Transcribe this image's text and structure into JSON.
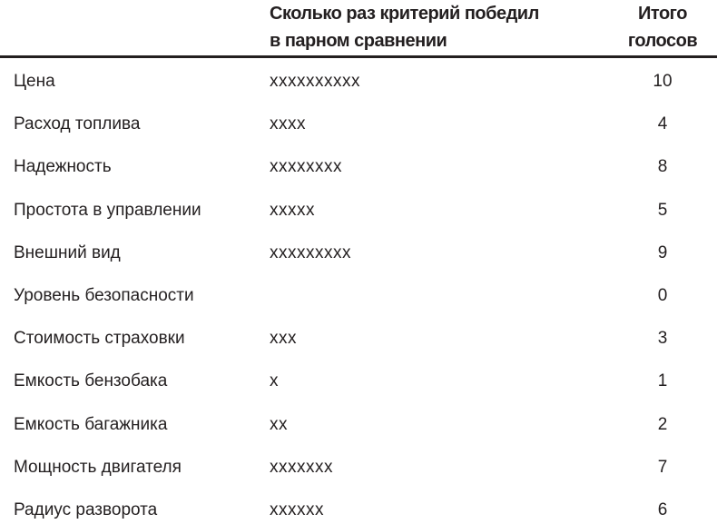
{
  "header": {
    "wins_line1": "Сколько раз критерий победил",
    "wins_line2": "в парном сравнении",
    "total_line1": "Итого",
    "total_line2": "голосов"
  },
  "rows": [
    {
      "criterion": "Цена",
      "marks": "xxxxxxxxxx",
      "total": "10"
    },
    {
      "criterion": "Расход топлива",
      "marks": "xxxx",
      "total": "4"
    },
    {
      "criterion": "Надежность",
      "marks": "xxxxxxxx",
      "total": "8"
    },
    {
      "criterion": "Простота в управлении",
      "marks": "xxxxx",
      "total": "5"
    },
    {
      "criterion": "Внешний вид",
      "marks": "xxxxxxxxx",
      "total": "9"
    },
    {
      "criterion": "Уровень безопасности",
      "marks": "",
      "total": "0"
    },
    {
      "criterion": "Стоимость страховки",
      "marks": "xxx",
      "total": "3"
    },
    {
      "criterion": "Емкость бензобака",
      "marks": "x",
      "total": "1"
    },
    {
      "criterion": "Емкость багажника",
      "marks": "xx",
      "total": "2"
    },
    {
      "criterion": "Мощность двигателя",
      "marks": "xxxxxxx",
      "total": "7"
    },
    {
      "criterion": "Радиус разворота",
      "marks": "xxxxxx",
      "total": "6"
    }
  ]
}
